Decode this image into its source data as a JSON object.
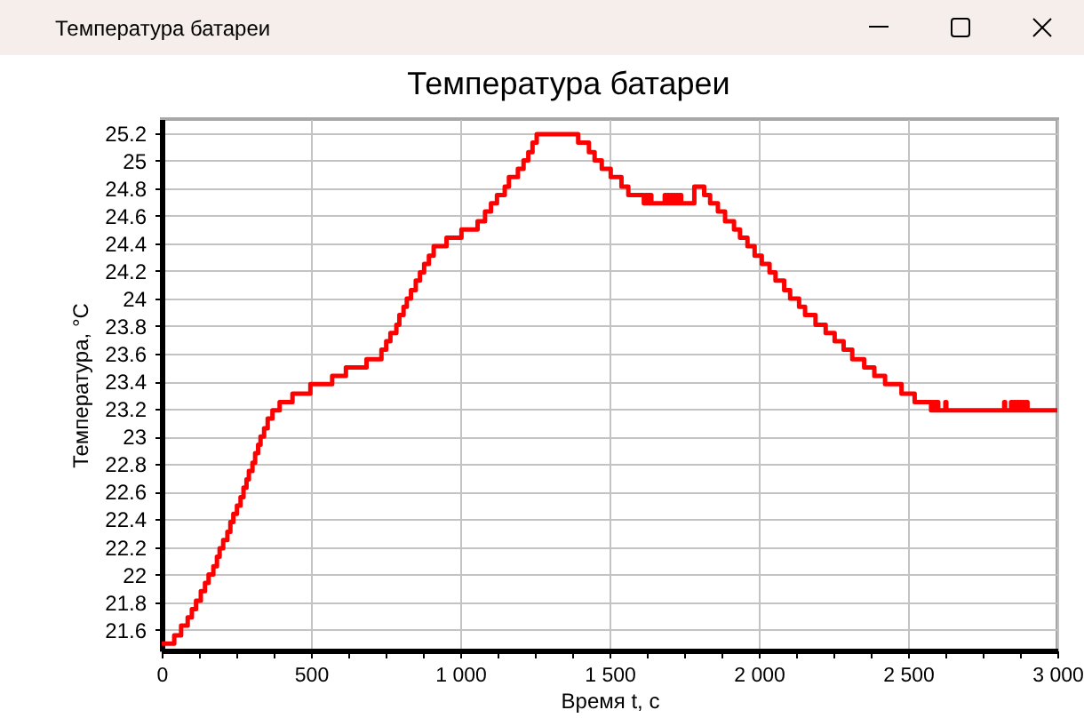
{
  "chart_data": {
    "type": "step",
    "title": "Температура батареи",
    "xlabel": "Время t, с",
    "ylabel": "Температура, °C",
    "annotations": [
      "Температура батареи"
    ],
    "x": [
      0,
      42,
      65,
      87,
      101,
      115,
      131,
      145,
      157,
      173,
      185,
      194,
      206,
      220,
      230,
      240,
      252,
      264,
      274,
      284,
      292,
      304,
      313,
      323,
      331,
      343,
      355,
      371,
      395,
      438,
      498,
      571,
      617,
      686,
      736,
      752,
      766,
      786,
      796,
      810,
      821,
      835,
      851,
      865,
      879,
      895,
      911,
      954,
      1004,
      1058,
      1083,
      1103,
      1123,
      1149,
      1163,
      1193,
      1212,
      1228,
      1242,
      1256,
      1395,
      1431,
      1450,
      1474,
      1504,
      1540,
      1563,
      1615,
      1620,
      1624,
      1628,
      1632,
      1636,
      1640,
      1685,
      1690,
      1695,
      1700,
      1705,
      1710,
      1715,
      1720,
      1725,
      1730,
      1735,
      1740,
      1784,
      1817,
      1837,
      1863,
      1887,
      1917,
      1937,
      1962,
      1986,
      2010,
      2036,
      2056,
      2085,
      2105,
      2135,
      2155,
      2190,
      2224,
      2254,
      2284,
      2313,
      2353,
      2387,
      2423,
      2478,
      2522,
      2577,
      2581,
      2585,
      2589,
      2593,
      2597,
      2601,
      2625,
      2628,
      2822,
      2825,
      2845,
      2850,
      2855,
      2860,
      2865,
      2870,
      2875,
      2880,
      2885,
      2890,
      2895,
      2900,
      3000
    ],
    "values": [
      21.5,
      21.56,
      21.63,
      21.69,
      21.75,
      21.81,
      21.88,
      21.94,
      22,
      22.06,
      22.13,
      22.19,
      22.25,
      22.31,
      22.38,
      22.44,
      22.5,
      22.56,
      22.63,
      22.69,
      22.75,
      22.81,
      22.88,
      22.94,
      23,
      23.06,
      23.13,
      23.19,
      23.25,
      23.31,
      23.38,
      23.44,
      23.5,
      23.56,
      23.63,
      23.69,
      23.75,
      23.81,
      23.88,
      23.94,
      24,
      24.06,
      24.13,
      24.19,
      24.25,
      24.31,
      24.38,
      24.44,
      24.5,
      24.56,
      24.63,
      24.69,
      24.75,
      24.81,
      24.88,
      24.94,
      25,
      25.06,
      25.13,
      25.19,
      25.13,
      25.06,
      25,
      24.94,
      24.88,
      24.81,
      24.75,
      24.69,
      24.75,
      24.69,
      24.75,
      24.69,
      24.75,
      24.69,
      24.75,
      24.69,
      24.75,
      24.69,
      24.75,
      24.69,
      24.75,
      24.69,
      24.75,
      24.69,
      24.75,
      24.69,
      24.81,
      24.75,
      24.69,
      24.63,
      24.56,
      24.5,
      24.44,
      24.38,
      24.31,
      24.25,
      24.19,
      24.13,
      24.06,
      24,
      23.94,
      23.88,
      23.81,
      23.75,
      23.69,
      23.63,
      23.56,
      23.5,
      23.44,
      23.38,
      23.31,
      23.25,
      23.19,
      23.25,
      23.19,
      23.25,
      23.19,
      23.25,
      23.19,
      23.25,
      23.19,
      23.25,
      23.19,
      23.25,
      23.19,
      23.25,
      23.19,
      23.25,
      23.19,
      23.25,
      23.19,
      23.25,
      23.19,
      23.25,
      23.19,
      23.19
    ],
    "color": "#ff0000",
    "xlim": [
      0,
      3000
    ],
    "ylim": [
      21.45,
      25.3
    ],
    "xticks": [
      0,
      {
        "value": 125,
        "label": null
      },
      {
        "value": 250,
        "label": null
      },
      {
        "value": 375,
        "label": null
      },
      500,
      {
        "value": 625,
        "label": null
      },
      {
        "value": 750,
        "label": null
      },
      {
        "value": 875,
        "label": null
      },
      {
        "value": 1000,
        "label": "1 000"
      },
      {
        "value": 1125,
        "label": null
      },
      {
        "value": 1250,
        "label": null
      },
      {
        "value": 1375,
        "label": null
      },
      {
        "value": 1500,
        "label": "1 500"
      },
      {
        "value": 1625,
        "label": null
      },
      {
        "value": 1750,
        "label": null
      },
      {
        "value": 1875,
        "label": null
      },
      {
        "value": 2000,
        "label": "2 000"
      },
      {
        "value": 2125,
        "label": null
      },
      {
        "value": 2250,
        "label": null
      },
      {
        "value": 2375,
        "label": null
      },
      {
        "value": 2500,
        "label": "2 500"
      },
      {
        "value": 2625,
        "label": null
      },
      {
        "value": 2750,
        "label": null
      },
      {
        "value": 2875,
        "label": null
      },
      {
        "value": 3000,
        "label": "3 000"
      }
    ],
    "yticks": [
      21.6,
      21.8,
      22,
      22.2,
      22.4,
      22.6,
      22.8,
      23,
      23.2,
      23.4,
      23.6,
      23.8,
      24,
      24.2,
      24.4,
      24.6,
      24.8,
      25,
      25.2
    ],
    "grid": true
  }
}
